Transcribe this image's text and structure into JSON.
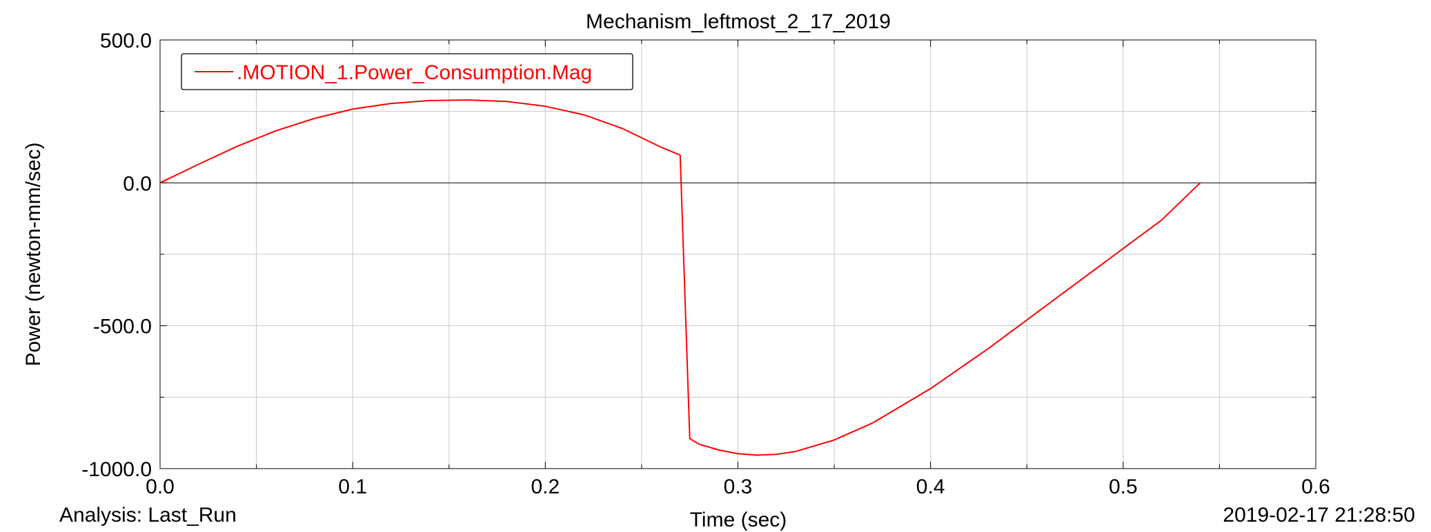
{
  "chart_data": {
    "type": "line",
    "title": "Mechanism_leftmost_2_17_2019",
    "xlabel": "Time (sec)",
    "ylabel": "Power (newton-mm/sec)",
    "xlim": [
      0.0,
      0.6
    ],
    "ylim": [
      -1000.0,
      500.0
    ],
    "x_ticks": [
      0.0,
      0.1,
      0.2,
      0.3,
      0.4,
      0.5,
      0.6
    ],
    "x_tick_labels": [
      "0.0",
      "0.1",
      "0.2",
      "0.3",
      "0.4",
      "0.5",
      "0.6"
    ],
    "y_ticks": [
      500.0,
      0.0,
      -500.0,
      -1000.0
    ],
    "y_tick_labels": [
      "500.0",
      "0.0",
      "-500.0",
      "-1000.0"
    ],
    "grid": true,
    "legend_position": "top-left",
    "series": [
      {
        "name": ".MOTION_1.Power_Consumption.Mag",
        "color": "#ff0000",
        "x": [
          0.0,
          0.02,
          0.04,
          0.06,
          0.08,
          0.1,
          0.12,
          0.14,
          0.16,
          0.18,
          0.2,
          0.22,
          0.24,
          0.26,
          0.27,
          0.275,
          0.28,
          0.29,
          0.3,
          0.31,
          0.32,
          0.33,
          0.35,
          0.37,
          0.4,
          0.43,
          0.46,
          0.49,
          0.52,
          0.54
        ],
        "y": [
          0,
          65,
          128,
          182,
          225,
          258,
          278,
          288,
          290,
          285,
          268,
          238,
          190,
          125,
          97,
          -895,
          -915,
          -935,
          -948,
          -953,
          -950,
          -940,
          -900,
          -840,
          -720,
          -580,
          -430,
          -280,
          -130,
          0
        ]
      }
    ]
  },
  "footer": {
    "analysis": "Analysis:  Last_Run",
    "timestamp": "2019-02-17 21:28:50"
  }
}
